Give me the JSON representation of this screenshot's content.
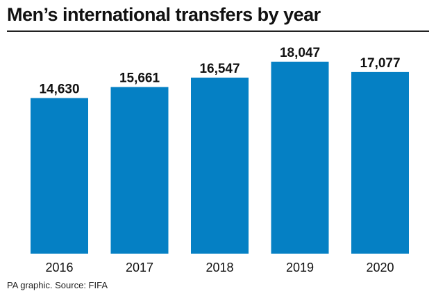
{
  "title": "Men’s international transfers by year",
  "source": "PA graphic. Source: FIFA",
  "colors": {
    "bar": "#0580c4",
    "text": "#111111",
    "rule": "#222222"
  },
  "chart_data": {
    "type": "bar",
    "title": "Men’s international transfers by year",
    "xlabel": "",
    "ylabel": "",
    "categories": [
      "2016",
      "2017",
      "2018",
      "2019",
      "2020"
    ],
    "values": [
      14630,
      15661,
      16547,
      18047,
      17077
    ],
    "value_labels": [
      "14,630",
      "15,661",
      "16,547",
      "18,047",
      "17,077"
    ],
    "ylim": [
      0,
      18047
    ],
    "grid": false,
    "legend": "none"
  }
}
